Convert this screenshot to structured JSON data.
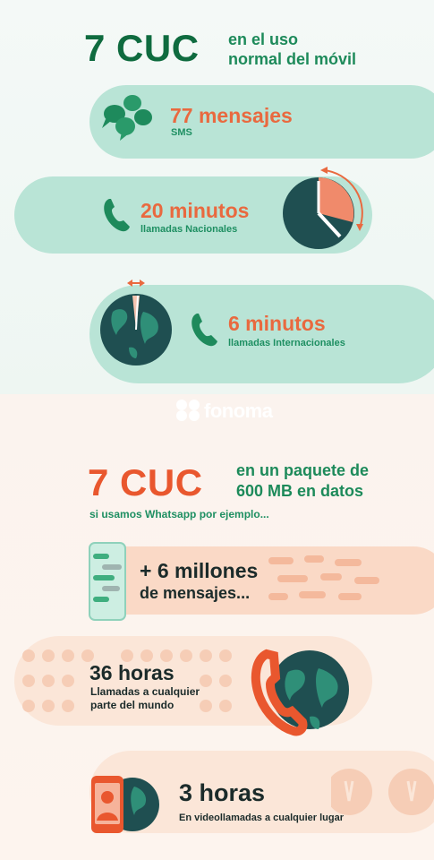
{
  "colors": {
    "teal": "#b9e4d6",
    "green": "#0f6b3f",
    "orange": "#e9572e",
    "dark_teal": "#1f4f51",
    "peach": "#fad9c6"
  },
  "top": {
    "price": "7 CUC",
    "caption_line1": "en el uso",
    "caption_line2": "normal del móvil"
  },
  "sms": {
    "value": "77 mensajes",
    "label": "SMS",
    "icon": "chat-bubbles-icon"
  },
  "national": {
    "value": "20 minutos",
    "label": "llamadas Nacionales",
    "icon": "phone-icon"
  },
  "international": {
    "value": "6 minutos",
    "label": "llamadas Internacionales",
    "icon": "phone-icon"
  },
  "brand": {
    "name": "fonoma"
  },
  "bottom": {
    "price": "7 CUC",
    "caption_line1": "en un paquete de",
    "caption_line2": "600 MB en datos",
    "caption_line3": "si usamos Whatsapp por ejemplo..."
  },
  "messages": {
    "value_line1": "+ 6 millones",
    "value_line2": "de mensajes...",
    "icon": "smartphone-chat-icon"
  },
  "calls": {
    "value": "36 horas",
    "label_line1": "Llamadas a cualquier",
    "label_line2": "parte del mundo",
    "icon": "globe-phone-icon"
  },
  "video": {
    "value": "3 horas",
    "label": "En videollamadas a cualquier lugar",
    "icon": "video-phone-icon"
  }
}
